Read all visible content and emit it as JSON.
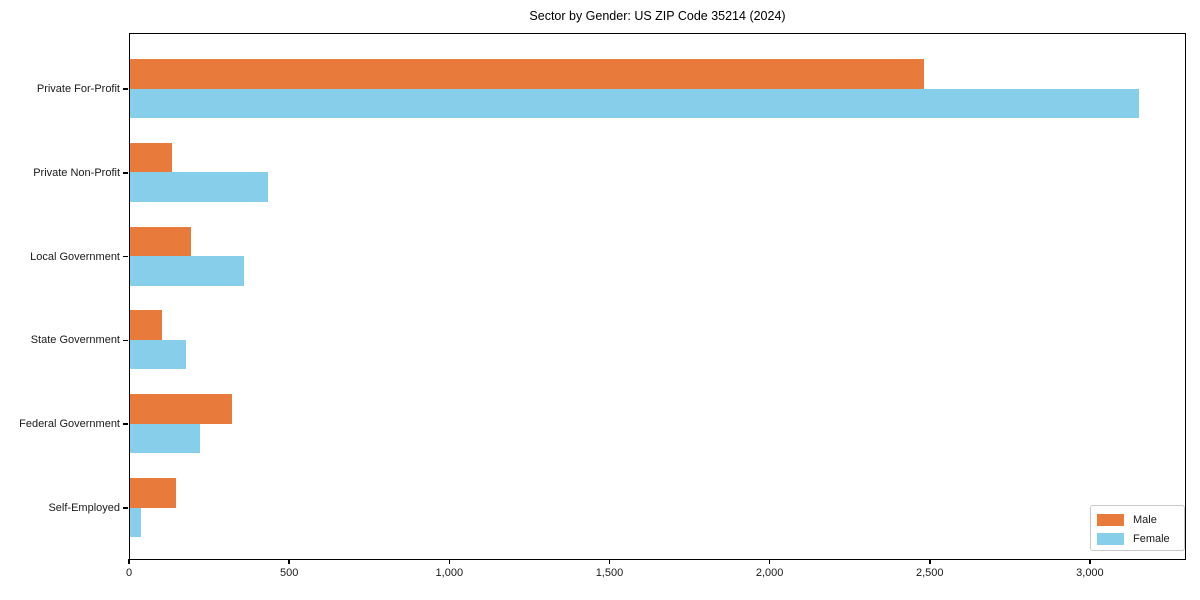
{
  "chart_data": {
    "type": "bar",
    "orientation": "horizontal",
    "title": "Sector by Gender: US ZIP Code 35214 (2024)",
    "categories": [
      "Private For-Profit",
      "Private Non-Profit",
      "Local Government",
      "State Government",
      "Federal Government",
      "Self-Employed"
    ],
    "series": [
      {
        "name": "Male",
        "color": "#e87b3c",
        "values": [
          2480,
          130,
          190,
          100,
          320,
          145
        ]
      },
      {
        "name": "Female",
        "color": "#87ceeb",
        "values": [
          3150,
          430,
          355,
          175,
          220,
          35
        ]
      }
    ],
    "xlabel": "",
    "ylabel": "",
    "xlim": [
      0,
      3300
    ],
    "xticks": [
      0,
      500,
      1000,
      1500,
      2000,
      2500,
      3000
    ],
    "xtick_labels": [
      "0",
      "500",
      "1,000",
      "1,500",
      "2,000",
      "2,500",
      "3,000"
    ],
    "grid": false,
    "legend_position": "lower right",
    "plot_background": "#ffffff",
    "spine_color": "#000000"
  }
}
